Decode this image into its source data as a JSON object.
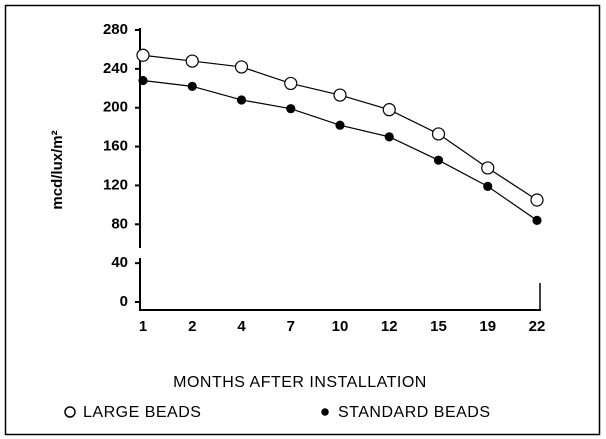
{
  "chart_data": {
    "type": "line",
    "y_label": "mcd/lux/m²",
    "x_label": "MONTHS AFTER INSTALLATION",
    "categories": [
      "1",
      "2",
      "4",
      "7",
      "10",
      "12",
      "15",
      "19",
      "22"
    ],
    "series": [
      {
        "name": "LARGE BEADS",
        "color": "#000000",
        "marker": "open",
        "values": [
          254,
          248,
          242,
          225,
          213,
          198,
          173,
          138,
          105
        ]
      },
      {
        "name": "STANDARD BEADS",
        "color": "#000000",
        "marker": "filled",
        "values": [
          228,
          222,
          208,
          199,
          182,
          170,
          146,
          119,
          84
        ]
      }
    ],
    "ylim": [
      0,
      280
    ],
    "yticks": [
      0,
      40,
      80,
      120,
      160,
      200,
      240,
      280
    ]
  }
}
